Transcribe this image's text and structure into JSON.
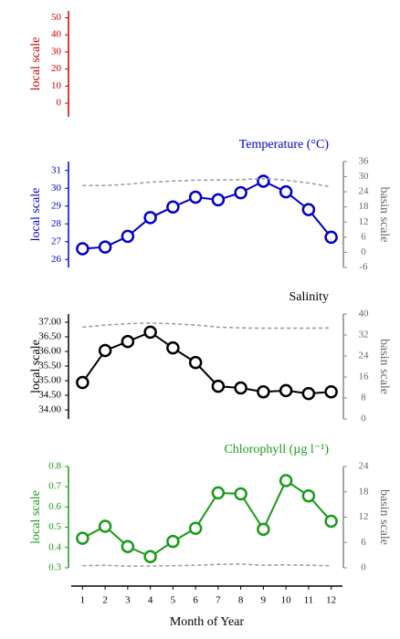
{
  "chart_data": [
    {
      "type": "line",
      "color": "#cc0000",
      "ylabel": "local scale",
      "ylim": [
        -8,
        54
      ],
      "yticks": [
        0,
        10,
        20,
        30,
        40,
        50
      ]
    },
    {
      "type": "line",
      "title": "Temperature (°C)",
      "color": "#0000cc",
      "ylabel": "local scale",
      "y2label": "basin scale",
      "ylim": [
        25.55,
        31.5
      ],
      "yticks": [
        26,
        27,
        28,
        29,
        30,
        31
      ],
      "y2lim": [
        -6,
        36
      ],
      "y2ticks": [
        -6,
        0,
        6,
        12,
        18,
        24,
        30,
        36
      ],
      "series": [
        {
          "color": "#0000cc",
          "values": [
            26.6,
            26.7,
            27.3,
            28.35,
            28.95,
            29.5,
            29.35,
            29.75,
            30.4,
            29.8,
            28.8,
            27.25
          ]
        },
        {
          "color": "#999999",
          "axis": "y2",
          "dashed": true,
          "values": [
            26.5,
            26.5,
            27,
            27.8,
            28.3,
            28.6,
            28.7,
            28.8,
            29.3,
            28.6,
            27.5,
            26
          ]
        }
      ]
    },
    {
      "type": "line",
      "title": "Salinity",
      "color": "#000000",
      "ylabel": "local scale",
      "y2label": "basin scale",
      "ylim": [
        33.69,
        37.28
      ],
      "yticks": [
        {
          "value": 34,
          "label": "34.00"
        },
        {
          "value": 34.5,
          "label": "34.50"
        },
        {
          "value": 35,
          "label": "35.00"
        },
        {
          "value": 35.5,
          "label": "35.50"
        },
        {
          "value": 36,
          "label": "36.00"
        },
        {
          "value": 36.5,
          "label": "36.50"
        },
        {
          "value": 37,
          "label": "37.00"
        }
      ],
      "y2lim": [
        0,
        40
      ],
      "y2ticks": [
        0,
        8,
        16,
        24,
        32,
        40
      ],
      "series": [
        {
          "color": "#000000",
          "values": [
            34.94,
            36.03,
            36.34,
            36.66,
            36.12,
            35.62,
            34.81,
            34.75,
            34.62,
            34.66,
            34.56,
            34.62
          ]
        },
        {
          "color": "#999999",
          "axis": "y2",
          "dashed": true,
          "values": [
            35,
            35.8,
            36.3,
            36.6,
            36.3,
            35.8,
            35,
            34.7,
            34.6,
            34.6,
            34.6,
            34.7
          ]
        }
      ]
    },
    {
      "type": "line",
      "title": "Chlorophyll (µg l⁻¹)",
      "color": "#1a9a1a",
      "ylabel": "local scale",
      "y2label": "basin scale",
      "ylim": [
        0.3,
        0.8
      ],
      "yticks": [
        0.3,
        0.4,
        0.5,
        0.6,
        0.7,
        0.8
      ],
      "y2lim": [
        0,
        24
      ],
      "y2ticks": [
        0,
        6,
        12,
        18,
        24
      ],
      "x": [
        1,
        2,
        3,
        4,
        5,
        6,
        7,
        8,
        9,
        10,
        11,
        12
      ],
      "xlim": [
        0.5,
        12.5
      ],
      "xlabel": "Month of Year",
      "series": [
        {
          "color": "#1a9a1a",
          "values": [
            0.446,
            0.505,
            0.405,
            0.355,
            0.43,
            0.495,
            0.67,
            0.665,
            0.49,
            0.73,
            0.655,
            0.53
          ]
        },
        {
          "color": "#999999",
          "axis": "y2",
          "dashed": true,
          "values": [
            0.5,
            0.6,
            0.4,
            0.4,
            0.5,
            0.6,
            0.8,
            0.9,
            0.6,
            0.7,
            0.6,
            0.5
          ]
        }
      ]
    }
  ]
}
